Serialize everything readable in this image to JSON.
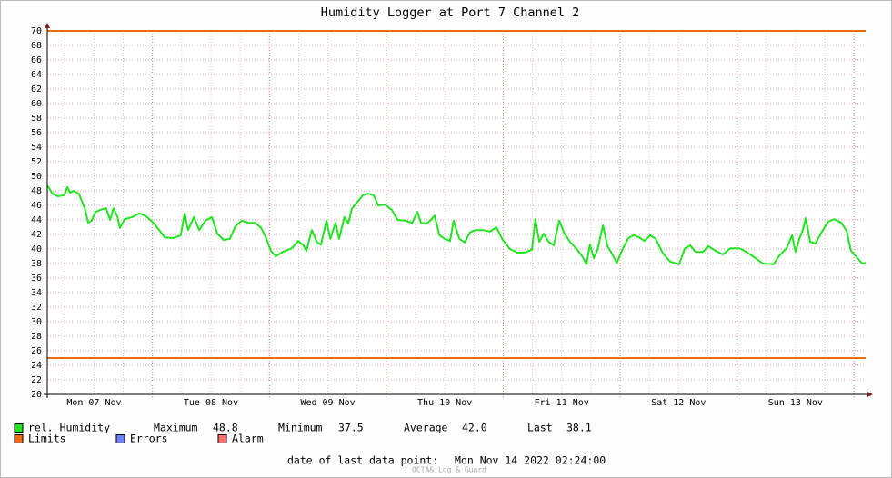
{
  "chart_data": {
    "type": "line",
    "title": "Humidity Logger at Port 7 Channel 2",
    "ylim": [
      20,
      70
    ],
    "yticks": [
      20,
      22,
      24,
      26,
      28,
      30,
      32,
      34,
      36,
      38,
      40,
      42,
      44,
      46,
      48,
      50,
      52,
      54,
      56,
      58,
      60,
      62,
      64,
      66,
      68,
      70
    ],
    "xlim": [
      0,
      168
    ],
    "xticks": [
      {
        "value": 9.6,
        "label": "Mon 07 Nov"
      },
      {
        "value": 33.6,
        "label": "Tue 08 Nov"
      },
      {
        "value": 57.6,
        "label": "Wed 09 Nov"
      },
      {
        "value": 81.6,
        "label": "Thu 10 Nov"
      },
      {
        "value": 105.6,
        "label": "Fri 11 Nov"
      },
      {
        "value": 129.6,
        "label": "Sat 12 Nov"
      },
      {
        "value": 153.6,
        "label": "Sun 13 Nov"
      }
    ],
    "grid": true,
    "series": [
      {
        "name": "rel. Humidity",
        "color": "#22e522",
        "x": [
          0,
          1.1,
          2.2,
          3.5,
          4.1,
          4.7,
          5.4,
          6.5,
          7.7,
          8.4,
          9.1,
          9.9,
          11.0,
          12.1,
          12.9,
          13.6,
          14.4,
          14.9,
          15.9,
          17.5,
          18.9,
          20.3,
          21.8,
          23.1,
          24.1,
          25.9,
          27.4,
          28.2,
          28.9,
          30.1,
          31.2,
          32.5,
          33.8,
          34.9,
          36.2,
          37.5,
          38.6,
          39.9,
          41.3,
          42.7,
          43.9,
          45.0,
          45.9,
          46.9,
          48.3,
          50.2,
          51.5,
          52.6,
          53.2,
          54.3,
          55.4,
          56.2,
          57.3,
          58.1,
          59.2,
          59.9,
          61.0,
          61.8,
          62.5,
          63.7,
          64.8,
          65.9,
          67.0,
          67.9,
          69.3,
          70.7,
          71.9,
          73.5,
          74.9,
          76.0,
          76.7,
          77.8,
          78.6,
          79.5,
          80.5,
          81.6,
          82.7,
          83.4,
          84.6,
          85.7,
          86.8,
          87.9,
          89.4,
          90.9,
          92.2,
          93.5,
          95.0,
          96.5,
          98.0,
          99.5,
          100.2,
          101.0,
          101.9,
          102.9,
          104.0,
          105.1,
          106.2,
          107.3,
          108.8,
          109.9,
          110.7,
          111.4,
          112.2,
          112.9,
          114.1,
          115.0,
          115.9,
          116.9,
          118.2,
          119.3,
          120.4,
          121.5,
          122.6,
          123.8,
          124.9,
          126.4,
          127.9,
          129.7,
          130.9,
          132.0,
          133.1,
          134.6,
          135.7,
          137.2,
          138.7,
          140.2,
          142.1,
          143.5,
          145.4,
          146.9,
          149.1,
          150.3,
          151.8,
          152.9,
          153.6,
          154.4,
          155.1,
          155.7,
          156.6,
          157.7,
          158.9,
          160.3,
          161.5,
          163.0,
          164.1,
          165.0,
          166.3,
          167.3,
          168
        ],
        "values": [
          48.75,
          47.6,
          47.25,
          47.4,
          48.5,
          47.75,
          48,
          47.6,
          45.6,
          43.6,
          43.9,
          45.1,
          45.4,
          45.6,
          44,
          45.6,
          44.5,
          42.9,
          44.1,
          44.4,
          44.9,
          44.5,
          43.6,
          42.5,
          41.6,
          41.5,
          41.9,
          44.9,
          42.6,
          44.4,
          42.6,
          43.9,
          44.4,
          42.1,
          41.25,
          41.4,
          43.1,
          43.9,
          43.6,
          43.6,
          42.9,
          41.4,
          39.75,
          39,
          39.6,
          40.1,
          41.1,
          40.5,
          39.75,
          42.6,
          40.9,
          40.6,
          43.9,
          41.4,
          43.6,
          41.4,
          44.4,
          43.5,
          45.5,
          46.5,
          47.4,
          47.6,
          47.4,
          46,
          46.1,
          45.4,
          44,
          43.9,
          43.6,
          45.1,
          43.6,
          43.5,
          43.9,
          44.6,
          41.9,
          41.4,
          41.1,
          43.9,
          41.4,
          40.9,
          42.3,
          42.6,
          42.6,
          42.4,
          43,
          41.25,
          40,
          39.5,
          39.5,
          39.9,
          44.1,
          41,
          42.1,
          41,
          40.5,
          43.9,
          42.1,
          41,
          39.9,
          38.9,
          37.9,
          40.6,
          38.75,
          39.75,
          43.25,
          40.4,
          39.4,
          38.1,
          40.1,
          41.5,
          41.9,
          41.6,
          41.1,
          41.9,
          41.4,
          39.4,
          38.25,
          37.9,
          40.1,
          40.5,
          39.6,
          39.6,
          40.4,
          39.75,
          39.25,
          40.1,
          40.1,
          39.6,
          38.75,
          38,
          37.9,
          39.1,
          40.1,
          41.9,
          39.6,
          41.4,
          42.6,
          44.25,
          41,
          40.75,
          42.25,
          43.75,
          44.1,
          43.6,
          42.5,
          39.75,
          38.75,
          38,
          38.1
        ]
      },
      {
        "name": "Limits",
        "color": "#f06a10",
        "values": [
          70,
          25
        ]
      },
      {
        "name": "Errors",
        "color": "#7080ff"
      },
      {
        "name": "Alarm",
        "color": "#ff7070"
      }
    ],
    "stats": [
      {
        "label": "Maximum",
        "value": "48.8"
      },
      {
        "label": "Minimum",
        "value": "37.5"
      },
      {
        "label": "Average",
        "value": "42.0"
      },
      {
        "label": "Last",
        "value": "38.1"
      }
    ],
    "footer": {
      "label": "date of last data point:",
      "value": "Mon Nov 14 2022 02:24:00"
    },
    "watermark": "OCTA& Log & Guard"
  }
}
